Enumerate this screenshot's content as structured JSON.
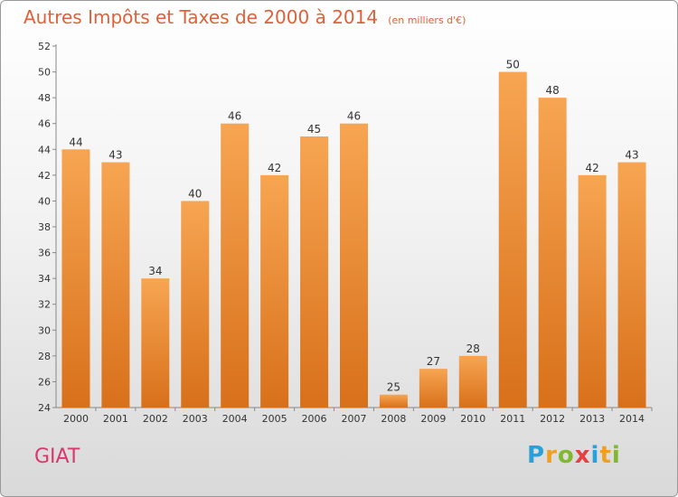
{
  "title": "Autres Impôts et Taxes de 2000 à 2014",
  "title_unit": "(en milliers d'€)",
  "commune": "GIAT",
  "logo": {
    "letters": [
      "P",
      "r",
      "o",
      "x",
      "i",
      "t",
      "i"
    ],
    "colors": [
      "#2aa0d8",
      "#f0a020",
      "#80b830",
      "#e84040",
      "#2aa0d8",
      "#f0a020",
      "#80b830"
    ]
  },
  "colors": {
    "title": "#e0603a",
    "commune": "#d9386c",
    "bar_top": "#f7a552",
    "bar_bottom": "#d8701a",
    "text": "#333333"
  },
  "chart_data": {
    "type": "bar",
    "title": "Autres Impôts et Taxes de 2000 à 2014",
    "unit": "(en milliers d'€)",
    "categories": [
      "2000",
      "2001",
      "2002",
      "2003",
      "2004",
      "2005",
      "2006",
      "2007",
      "2008",
      "2009",
      "2010",
      "2011",
      "2012",
      "2013",
      "2014"
    ],
    "values": [
      44,
      43,
      34,
      40,
      46,
      42,
      45,
      46,
      25,
      27,
      28,
      50,
      48,
      42,
      43
    ],
    "ylim": [
      24,
      52
    ],
    "yticks": [
      24,
      26,
      28,
      30,
      32,
      34,
      36,
      38,
      40,
      42,
      44,
      46,
      48,
      50,
      52
    ],
    "grid": false
  }
}
